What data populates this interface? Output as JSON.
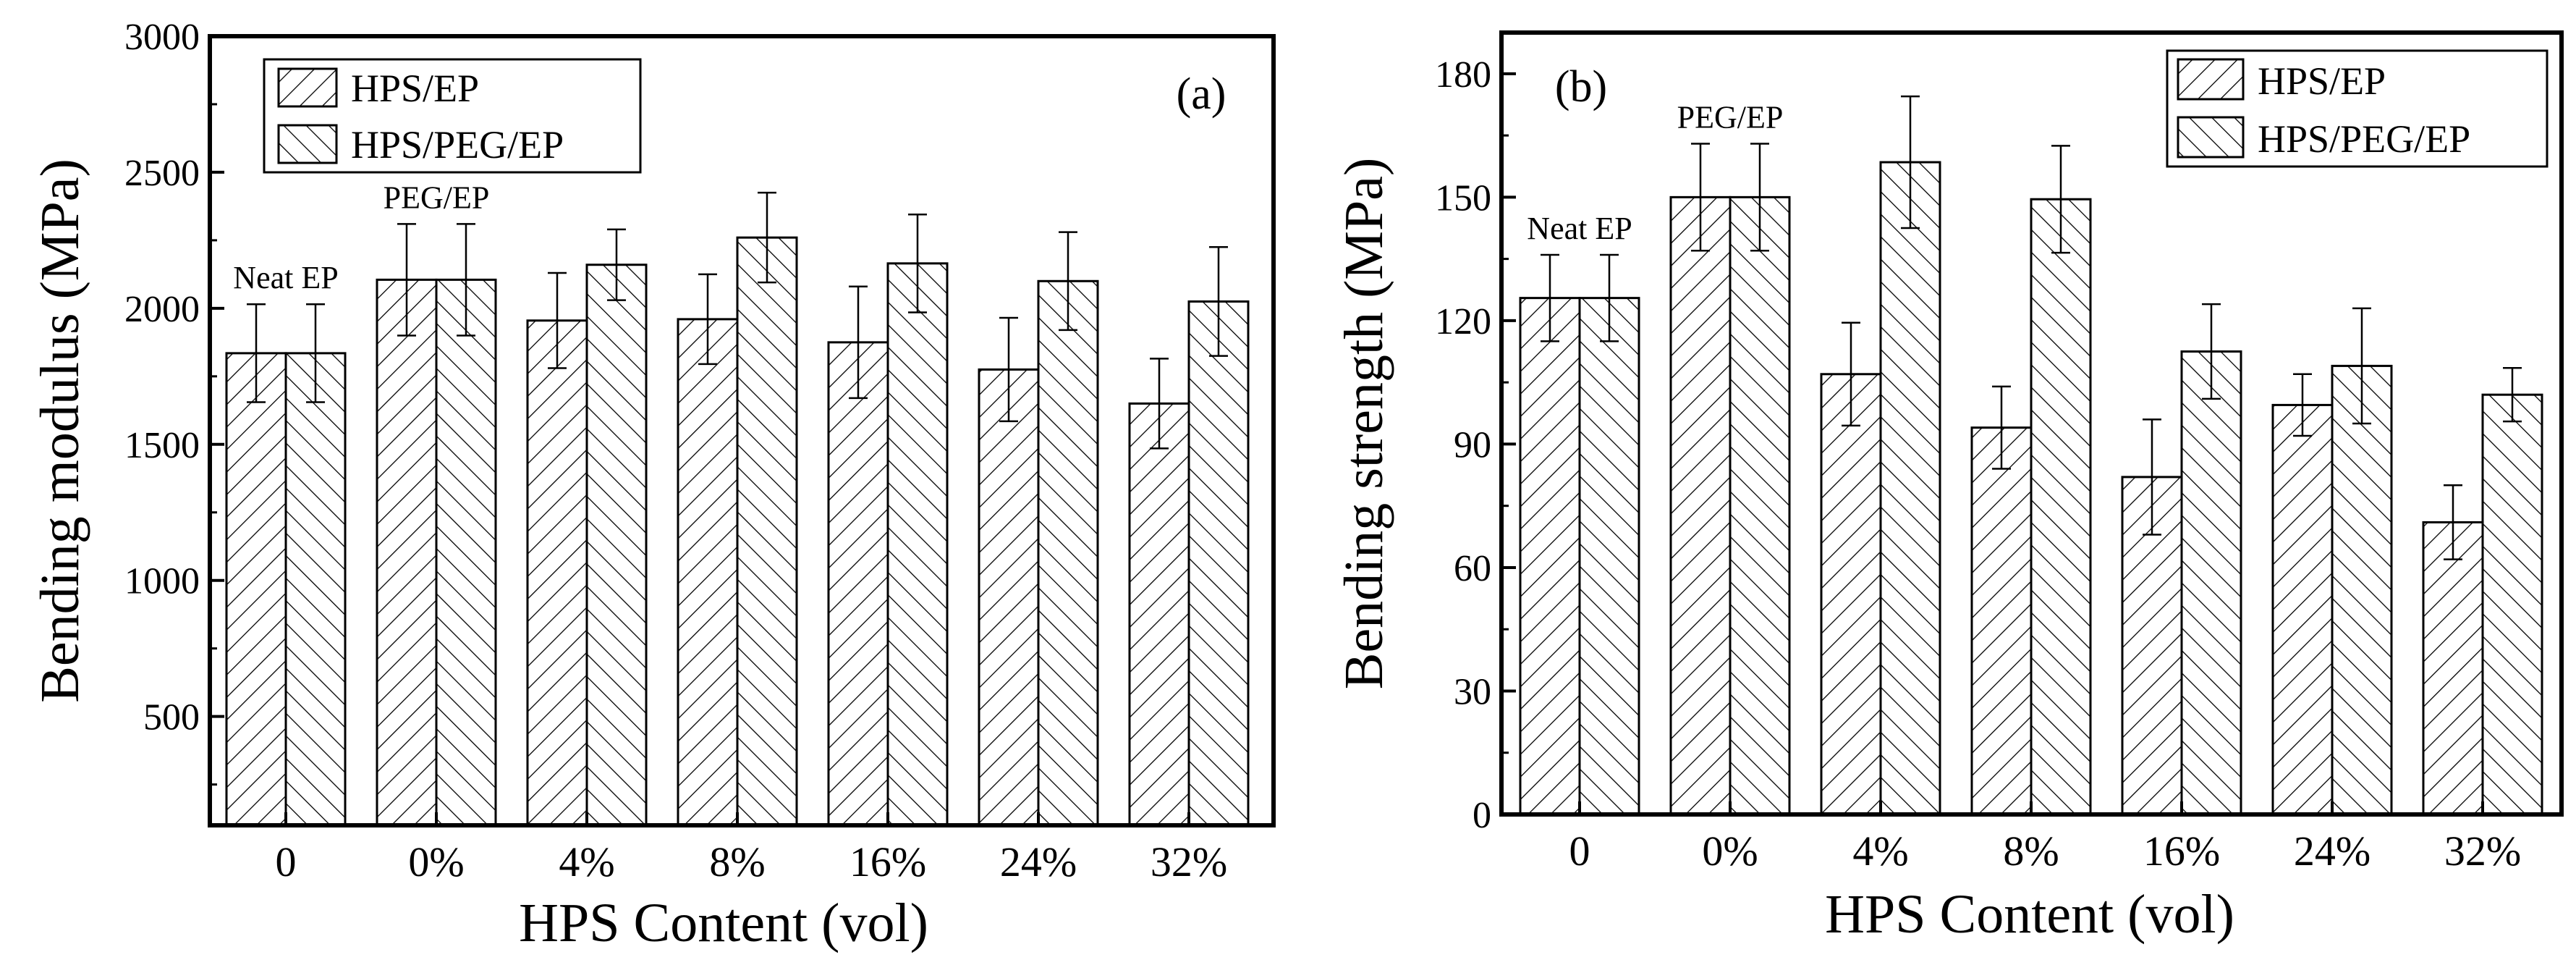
{
  "chart_data": [
    {
      "id": "a",
      "type": "bar",
      "panel_label": "(a)",
      "xlabel": "HPS Content (vol)",
      "ylabel": "Bending modulus (MPa)",
      "categories": [
        "0",
        "0%",
        "4%",
        "8%",
        "16%",
        "24%",
        "32%"
      ],
      "ylim": [
        100,
        3000
      ],
      "yticks": [
        500,
        1000,
        1500,
        2000,
        2500,
        3000
      ],
      "ytick_labels": [
        "500",
        "1000",
        "1500",
        "2000",
        "2500",
        "3000"
      ],
      "legend_position": "top-left",
      "series": [
        {
          "name": "HPS/EP",
          "hatch": "forward-diagonal",
          "values": [
            1835,
            2105,
            1955,
            1960,
            1875,
            1775,
            1650
          ],
          "errors": [
            180,
            205,
            175,
            165,
            205,
            190,
            165
          ]
        },
        {
          "name": "HPS/PEG/EP",
          "hatch": "back-diagonal",
          "values": [
            1835,
            2105,
            2160,
            2260,
            2165,
            2100,
            2025
          ],
          "errors": [
            180,
            205,
            130,
            165,
            180,
            180,
            200
          ]
        }
      ],
      "annotations": [
        {
          "text": "Neat EP",
          "category_index": 0
        },
        {
          "text": "PEG/EP",
          "category_index": 1
        }
      ]
    },
    {
      "id": "b",
      "type": "bar",
      "panel_label": "(b)",
      "xlabel": "HPS Content (vol)",
      "ylabel": "Bending strength (MPa)",
      "categories": [
        "0",
        "0%",
        "4%",
        "8%",
        "16%",
        "24%",
        "32%"
      ],
      "ylim": [
        0,
        190
      ],
      "yticks": [
        0,
        30,
        60,
        90,
        120,
        150,
        180
      ],
      "ytick_labels": [
        "0",
        "30",
        "60",
        "90",
        "120",
        "150",
        "180"
      ],
      "legend_position": "top-right",
      "series": [
        {
          "name": "HPS/EP",
          "hatch": "forward-diagonal",
          "values": [
            125.5,
            150,
            107,
            94,
            82,
            99.5,
            71
          ],
          "errors": [
            10.5,
            13,
            12.5,
            10,
            14,
            7.5,
            9
          ]
        },
        {
          "name": "HPS/PEG/EP",
          "hatch": "back-diagonal",
          "values": [
            125.5,
            150,
            158.5,
            149.5,
            112.5,
            109,
            102
          ],
          "errors": [
            10.5,
            13,
            16,
            13,
            11.5,
            14,
            6.5
          ]
        }
      ],
      "annotations": [
        {
          "text": "Neat EP",
          "category_index": 0
        },
        {
          "text": "PEG/EP",
          "category_index": 1
        }
      ]
    }
  ]
}
